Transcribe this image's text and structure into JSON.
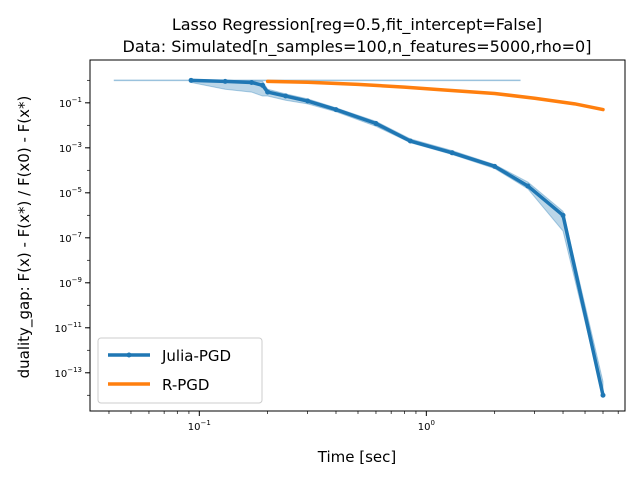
{
  "chart_data": {
    "type": "line",
    "title": "Lasso Regression[reg=0.5,fit_intercept=False]",
    "subtitle": "Data: Simulated[n_samples=100,n_features=5000,rho=0]",
    "xlabel": "Time [sec]",
    "ylabel": "duality_gap: F(x) - F(x*) / F(x0) - F(x*)",
    "xscale": "log",
    "yscale": "log",
    "xlim": [
      0.033,
      7.5
    ],
    "ylim": [
      2e-15,
      8
    ],
    "x_ticks": [
      {
        "base": "10",
        "exp": "−1",
        "value": 0.1
      },
      {
        "base": "10",
        "exp": "0",
        "value": 1
      }
    ],
    "y_ticks": [
      {
        "base": "10",
        "exp": "−1",
        "value": 0.1
      },
      {
        "base": "10",
        "exp": "−3",
        "value": 0.001
      },
      {
        "base": "10",
        "exp": "−5",
        "value": 1e-05
      },
      {
        "base": "10",
        "exp": "−7",
        "value": 1e-07
      },
      {
        "base": "10",
        "exp": "−9",
        "value": 1e-09
      },
      {
        "base": "10",
        "exp": "−11",
        "value": 1e-11
      },
      {
        "base": "10",
        "exp": "−13",
        "value": 1e-13
      }
    ],
    "grid": false,
    "legend_position": "lower left",
    "series": [
      {
        "name": "Julia-PGD",
        "color": "#1f77b4",
        "marker": "dot",
        "x": [
          0.092,
          0.13,
          0.17,
          0.19,
          0.2,
          0.24,
          0.3,
          0.4,
          0.6,
          0.85,
          1.3,
          2.0,
          2.8,
          4.0,
          6.0
        ],
        "y": [
          1.0,
          0.9,
          0.8,
          0.6,
          0.3,
          0.2,
          0.12,
          0.05,
          0.012,
          0.002,
          0.0006,
          0.00015,
          2e-05,
          1e-06,
          1e-14
        ],
        "band": {
          "x": [
            0.092,
            0.13,
            0.17,
            0.19,
            0.2,
            0.24,
            0.3,
            0.4,
            0.6,
            0.85,
            1.3,
            2.0,
            2.8,
            4.0,
            6.0
          ],
          "lower": [
            0.8,
            0.4,
            0.3,
            0.2,
            0.2,
            0.13,
            0.09,
            0.04,
            0.009,
            0.0017,
            0.0005,
            0.00012,
            1.5e-05,
            2e-07,
            1e-14
          ],
          "upper": [
            1.1,
            1.0,
            0.95,
            0.9,
            0.4,
            0.25,
            0.15,
            0.06,
            0.015,
            0.0025,
            0.00075,
            0.00018,
            3e-05,
            1.5e-06,
            4e-14
          ]
        },
        "reference_line": {
          "x": [
            0.042,
            2.6
          ],
          "y": [
            1.0,
            1.0
          ]
        }
      },
      {
        "name": "R-PGD",
        "color": "#ff7f0e",
        "marker": "none",
        "x": [
          0.2,
          0.3,
          0.5,
          0.8,
          1.2,
          2.0,
          3.0,
          4.5,
          6.0
        ],
        "y": [
          0.9,
          0.82,
          0.66,
          0.5,
          0.37,
          0.26,
          0.16,
          0.09,
          0.05
        ]
      }
    ]
  }
}
